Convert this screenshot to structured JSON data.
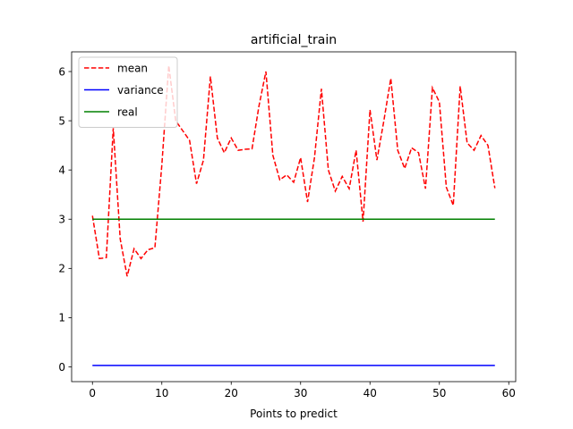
{
  "chart_data": {
    "type": "line",
    "title": "artificial_train",
    "xlabel": "Points to predict",
    "ylabel": "",
    "xlim": [
      -3,
      61
    ],
    "ylim": [
      -0.3,
      6.4
    ],
    "xticks": [
      0,
      10,
      20,
      30,
      40,
      50,
      60
    ],
    "yticks": [
      0,
      1,
      2,
      3,
      4,
      5,
      6
    ],
    "grid": false,
    "legend_position": "upper-left",
    "x": [
      0,
      1,
      2,
      3,
      4,
      5,
      6,
      7,
      8,
      9,
      10,
      11,
      12,
      13,
      14,
      15,
      16,
      17,
      18,
      19,
      20,
      21,
      22,
      23,
      24,
      25,
      26,
      27,
      28,
      29,
      30,
      31,
      32,
      33,
      34,
      35,
      36,
      37,
      38,
      39,
      40,
      41,
      42,
      43,
      44,
      45,
      46,
      47,
      48,
      49,
      50,
      51,
      52,
      53,
      54,
      55,
      56,
      57,
      58
    ],
    "series": [
      {
        "name": "mean",
        "color": "#ff0000",
        "style": "dashed",
        "values": [
          3.07,
          2.2,
          2.22,
          4.85,
          2.6,
          1.84,
          2.4,
          2.2,
          2.38,
          2.42,
          4.1,
          6.12,
          5.0,
          4.8,
          4.6,
          3.72,
          4.2,
          5.9,
          4.65,
          4.35,
          4.65,
          4.4,
          4.42,
          4.43,
          5.3,
          6.0,
          4.3,
          3.8,
          3.9,
          3.75,
          4.25,
          3.35,
          4.25,
          5.65,
          4.0,
          3.57,
          3.87,
          3.62,
          4.4,
          2.95,
          5.22,
          4.2,
          5.0,
          5.86,
          4.4,
          4.03,
          4.45,
          4.35,
          3.62,
          5.67,
          5.38,
          3.65,
          3.28,
          5.7,
          4.55,
          4.4,
          4.7,
          4.5,
          3.63
        ]
      },
      {
        "name": "variance",
        "color": "#0000ff",
        "style": "solid",
        "values": [
          0.03,
          0.03,
          0.03,
          0.03,
          0.03,
          0.03,
          0.03,
          0.03,
          0.03,
          0.03,
          0.03,
          0.03,
          0.03,
          0.03,
          0.03,
          0.03,
          0.03,
          0.03,
          0.03,
          0.03,
          0.03,
          0.03,
          0.03,
          0.03,
          0.03,
          0.03,
          0.03,
          0.03,
          0.03,
          0.03,
          0.03,
          0.03,
          0.03,
          0.03,
          0.03,
          0.03,
          0.03,
          0.03,
          0.03,
          0.03,
          0.03,
          0.03,
          0.03,
          0.03,
          0.03,
          0.03,
          0.03,
          0.03,
          0.03,
          0.03,
          0.03,
          0.03,
          0.03,
          0.03,
          0.03,
          0.03,
          0.03,
          0.03,
          0.03
        ]
      },
      {
        "name": "real",
        "color": "#008000",
        "style": "solid",
        "values": [
          3,
          3,
          3,
          3,
          3,
          3,
          3,
          3,
          3,
          3,
          3,
          3,
          3,
          3,
          3,
          3,
          3,
          3,
          3,
          3,
          3,
          3,
          3,
          3,
          3,
          3,
          3,
          3,
          3,
          3,
          3,
          3,
          3,
          3,
          3,
          3,
          3,
          3,
          3,
          3,
          3,
          3,
          3,
          3,
          3,
          3,
          3,
          3,
          3,
          3,
          3,
          3,
          3,
          3,
          3,
          3,
          3,
          3,
          3
        ]
      }
    ]
  }
}
